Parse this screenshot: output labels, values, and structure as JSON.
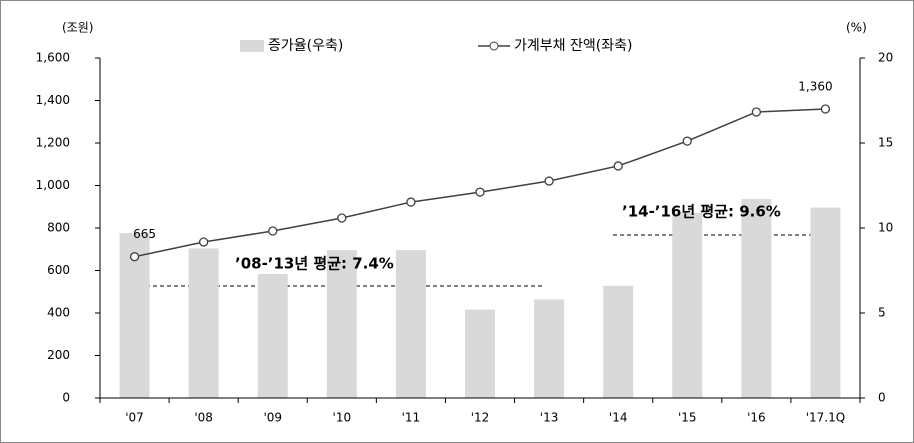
{
  "chart_data": {
    "type": "bar_line",
    "y_label": "(조원)",
    "y2_label": "(%)",
    "categories": [
      "'07",
      "'08",
      "'09",
      "'10",
      "'11",
      "'12",
      "'13",
      "'14",
      "'15",
      "'16",
      "'17.1Q"
    ],
    "series": [
      {
        "name": "증가율(우축)",
        "type": "bar",
        "axis": "y2",
        "color": "#d9d9d9",
        "values": [
          9.7,
          8.8,
          7.3,
          8.7,
          8.7,
          5.2,
          5.8,
          6.6,
          10.9,
          11.7,
          11.2
        ]
      },
      {
        "name": "가계부채 잔액(좌축)",
        "type": "line",
        "axis": "y",
        "color": "#404040",
        "values": [
          665,
          734,
          786,
          847,
          922,
          969,
          1021,
          1092,
          1209,
          1346,
          1360
        ],
        "value_labels": [
          "665",
          null,
          null,
          null,
          null,
          null,
          null,
          null,
          null,
          null,
          "1,360"
        ]
      }
    ],
    "ylim": [
      0,
      1600
    ],
    "yticks": [
      0,
      200,
      400,
      600,
      800,
      {
        "value": 1000,
        "label": "1,000"
      },
      {
        "value": 1200,
        "label": "1,200"
      },
      {
        "value": 1400,
        "label": "1,400"
      },
      {
        "value": 1600,
        "label": "1,600"
      }
    ],
    "y2lim": [
      0,
      20
    ],
    "y2ticks": [
      0,
      5,
      10,
      15,
      20
    ],
    "annotations": [
      "’08-’13년  평균: 7.4%",
      "’14-’16년  평균: 9.6%"
    ]
  }
}
